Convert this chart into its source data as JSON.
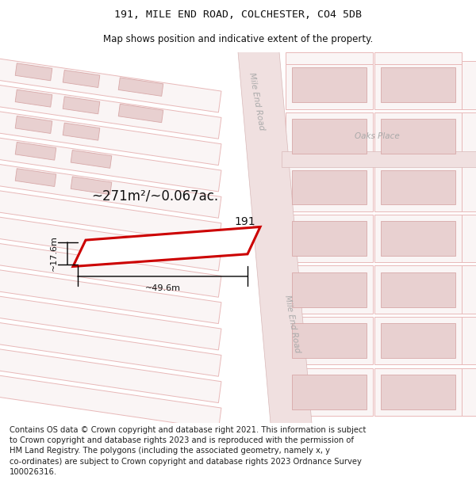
{
  "title": "191, MILE END ROAD, COLCHESTER, CO4 5DB",
  "subtitle": "Map shows position and indicative extent of the property.",
  "title_fontsize": 9.5,
  "subtitle_fontsize": 8.5,
  "copyright_text": "Contains OS data © Crown copyright and database right 2021. This information is subject\nto Crown copyright and database rights 2023 and is reproduced with the permission of\nHM Land Registry. The polygons (including the associated geometry, namely x, y\nco-ordinates) are subject to Crown copyright and database rights 2023 Ordnance Survey\n100026316.",
  "copyright_fontsize": 7.2,
  "bg_color": "#ffffff",
  "road_color": "#f0e0e0",
  "road_edge_color": "#d8b8b8",
  "parcel_fill": "#faf5f5",
  "parcel_edge": "#e8b8b8",
  "building_fill": "#e8d0d0",
  "building_edge": "#d8a8a8",
  "highlight_color": "#cc0000",
  "property_label": "191",
  "area_label": "~271m²/~0.067ac.",
  "width_label": "~49.6m",
  "height_label": "~17.6m",
  "road_label_color": "#aaaaaa",
  "oaks_place_label": "Oaks Place",
  "mile_end_upper": "Mile End Road",
  "mile_end_lower": "Mile End Road"
}
